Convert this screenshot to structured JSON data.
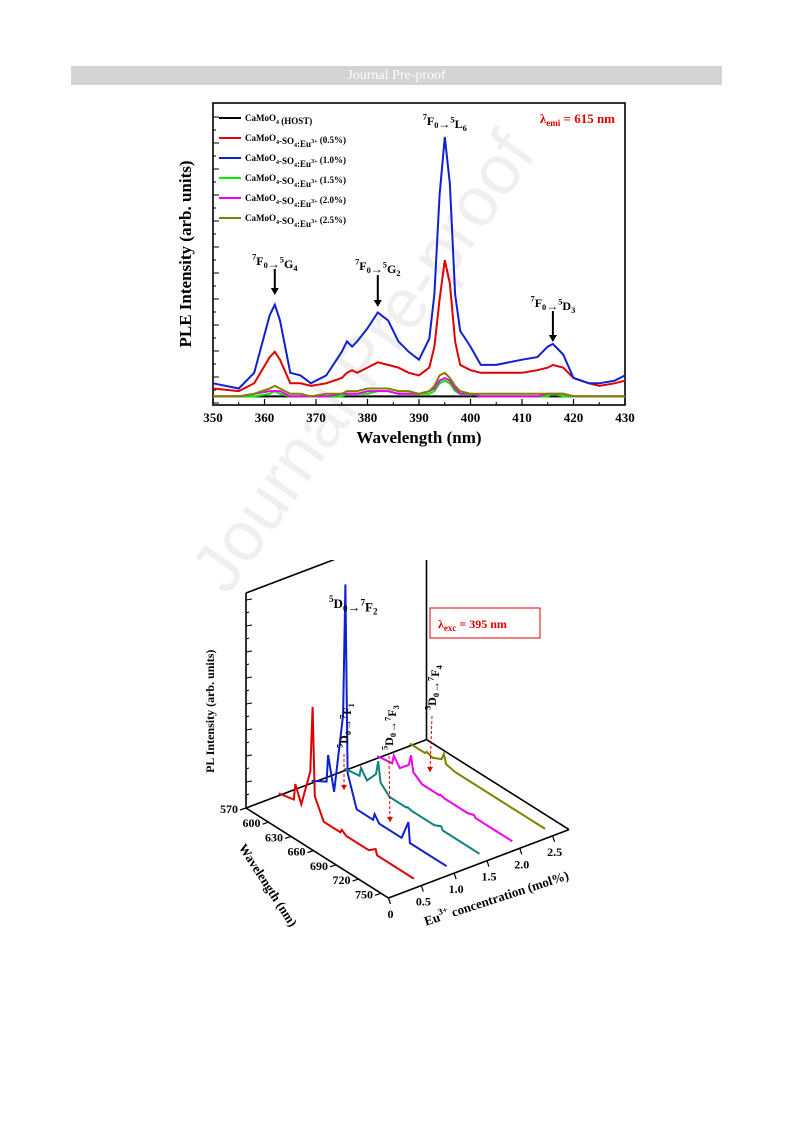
{
  "header": {
    "label": "Journal Pre-proof"
  },
  "watermark": "Journal Pre-proof",
  "chart_data": [
    {
      "type": "line",
      "xlabel": "Wavelength (nm)",
      "ylabel": "PLE Intensity (arb. units)",
      "xlim": [
        350,
        430
      ],
      "x_ticks": [
        350,
        360,
        370,
        380,
        390,
        400,
        410,
        420,
        430
      ],
      "ylim": [
        0,
        100
      ],
      "grid": false,
      "legend_position": "top-left",
      "annotation_emission": "λemi = 615 nm",
      "peak_labels": [
        "7F0→5G4",
        "7F0→5G2",
        "7F0→5L6",
        "7F0→5D3"
      ],
      "x": [
        350,
        355,
        358,
        361,
        362,
        363,
        365,
        367,
        369,
        372,
        375,
        376,
        377,
        378,
        380,
        382,
        384,
        386,
        388,
        390,
        392,
        393,
        394,
        395,
        396,
        397,
        398,
        400,
        402,
        405,
        410,
        413,
        415,
        416,
        418,
        420,
        423,
        425,
        428,
        430
      ],
      "series": [
        {
          "name": "CaMoO4 (HOST)",
          "color": "#000000",
          "values": [
            1,
            1,
            1,
            1,
            1,
            1,
            1,
            1,
            1,
            1,
            1,
            1,
            1,
            1,
            1,
            1,
            1,
            1,
            1,
            1,
            1,
            1,
            1,
            1,
            1,
            1,
            1,
            1,
            1,
            1,
            1,
            1,
            1,
            1,
            1,
            1,
            1,
            1,
            1,
            1
          ]
        },
        {
          "name": "CaMoO4-SO4:Eu3+ (0.5%)",
          "color": "#e00000",
          "values": [
            4,
            3,
            6,
            16,
            18,
            15,
            6,
            6,
            5,
            6,
            8,
            10,
            11,
            10,
            12,
            14,
            13,
            12,
            10,
            9,
            12,
            20,
            38,
            53,
            44,
            22,
            13,
            11,
            10,
            10,
            10,
            11,
            12,
            13,
            12,
            8,
            6,
            5,
            6,
            7
          ]
        },
        {
          "name": "CaMoO4-SO4:Eu3+ (1.0%)",
          "color": "#1020d0",
          "values": [
            6,
            4,
            10,
            32,
            36,
            30,
            10,
            9,
            6,
            9,
            18,
            22,
            20,
            22,
            27,
            33,
            30,
            22,
            18,
            15,
            23,
            40,
            78,
            100,
            82,
            40,
            26,
            20,
            13,
            13,
            15,
            16,
            20,
            21,
            17,
            8,
            6,
            6,
            7,
            9
          ]
        },
        {
          "name": "CaMoO4-SO4:Eu3+ (1.5%)",
          "color": "#00ee00",
          "values": [
            1,
            1,
            1,
            2,
            3,
            2,
            1,
            1,
            1,
            1,
            1,
            2,
            2,
            2,
            2,
            3,
            3,
            2,
            2,
            2,
            2,
            3,
            6,
            7,
            6,
            3,
            2,
            2,
            1,
            1,
            1,
            1,
            1,
            2,
            1,
            1,
            1,
            1,
            1,
            1
          ]
        },
        {
          "name": "CaMoO4-SO4:Eu3+ (2.0%)",
          "color": "#ee00ee",
          "values": [
            1,
            1,
            2,
            3,
            3,
            3,
            1,
            1,
            1,
            1,
            2,
            2,
            2,
            2,
            3,
            3,
            3,
            2,
            2,
            2,
            3,
            4,
            7,
            8,
            7,
            4,
            2,
            2,
            1,
            1,
            1,
            1,
            2,
            2,
            2,
            1,
            1,
            1,
            1,
            1
          ]
        },
        {
          "name": "CaMoO4-SO4:Eu3+ (2.5%)",
          "color": "#808000",
          "values": [
            1,
            1,
            2,
            4,
            5,
            4,
            2,
            2,
            1,
            2,
            2,
            3,
            3,
            3,
            4,
            4,
            4,
            3,
            3,
            2,
            3,
            5,
            9,
            10,
            8,
            5,
            3,
            2,
            2,
            2,
            2,
            2,
            2,
            2,
            2,
            1,
            1,
            1,
            1,
            1
          ]
        }
      ]
    },
    {
      "type": "line",
      "projection": "3d-waterfall",
      "xlabel": "Eu3+ concentration (mol%)",
      "ylabel": "Wavelength (nm)",
      "zlabel": "PL Intensity (arb. units)",
      "x_ticks": [
        "0",
        "0.5",
        "1.0",
        "1.5",
        "2.0",
        "2.5"
      ],
      "y_ticks": [
        "570",
        "600",
        "630",
        "660",
        "690",
        "720",
        "750"
      ],
      "annotation_excitation": "λexc = 395 nm",
      "transition_labels": [
        "5D0→7F2",
        "5D0→7F1",
        "5D0→7F3",
        "5D0→7F4"
      ],
      "wavelength": [
        570,
        590,
        592,
        600,
        612,
        615,
        618,
        630,
        652,
        654,
        660,
        690,
        699,
        701,
        720,
        750
      ],
      "series": [
        {
          "name": "0.5",
          "color": "#e00000",
          "values": [
            0.02,
            0.05,
            0.2,
            0.05,
            0.4,
            1.0,
            0.2,
            0.02,
            0.02,
            0.05,
            0.02,
            0.02,
            0.07,
            0.02,
            0.02,
            0.02
          ]
        },
        {
          "name": "1.0",
          "color": "#1020d0",
          "values": [
            0.02,
            0.1,
            0.35,
            0.05,
            0.8,
            2.0,
            0.3,
            0.02,
            0.02,
            0.08,
            0.02,
            0.02,
            0.2,
            0.02,
            0.02,
            0.02
          ]
        },
        {
          "name": "1.5",
          "color": "#108080",
          "values": [
            0.02,
            0.04,
            0.12,
            0.04,
            0.15,
            0.28,
            0.1,
            0.02,
            0.02,
            0.03,
            0.02,
            0.02,
            0.05,
            0.02,
            0.02,
            0.02
          ]
        },
        {
          "name": "2.0",
          "color": "#ee00ee",
          "values": [
            0.02,
            0.04,
            0.12,
            0.04,
            0.12,
            0.22,
            0.08,
            0.02,
            0.02,
            0.03,
            0.02,
            0.02,
            0.04,
            0.02,
            0.02,
            0.02
          ]
        },
        {
          "name": "2.5",
          "color": "#808000",
          "values": [
            0.02,
            0.02,
            0.04,
            0.02,
            0.06,
            0.12,
            0.04,
            0.02,
            0.02,
            0.02,
            0.02,
            0.02,
            0.02,
            0.02,
            0.02,
            0.02
          ]
        }
      ]
    }
  ]
}
